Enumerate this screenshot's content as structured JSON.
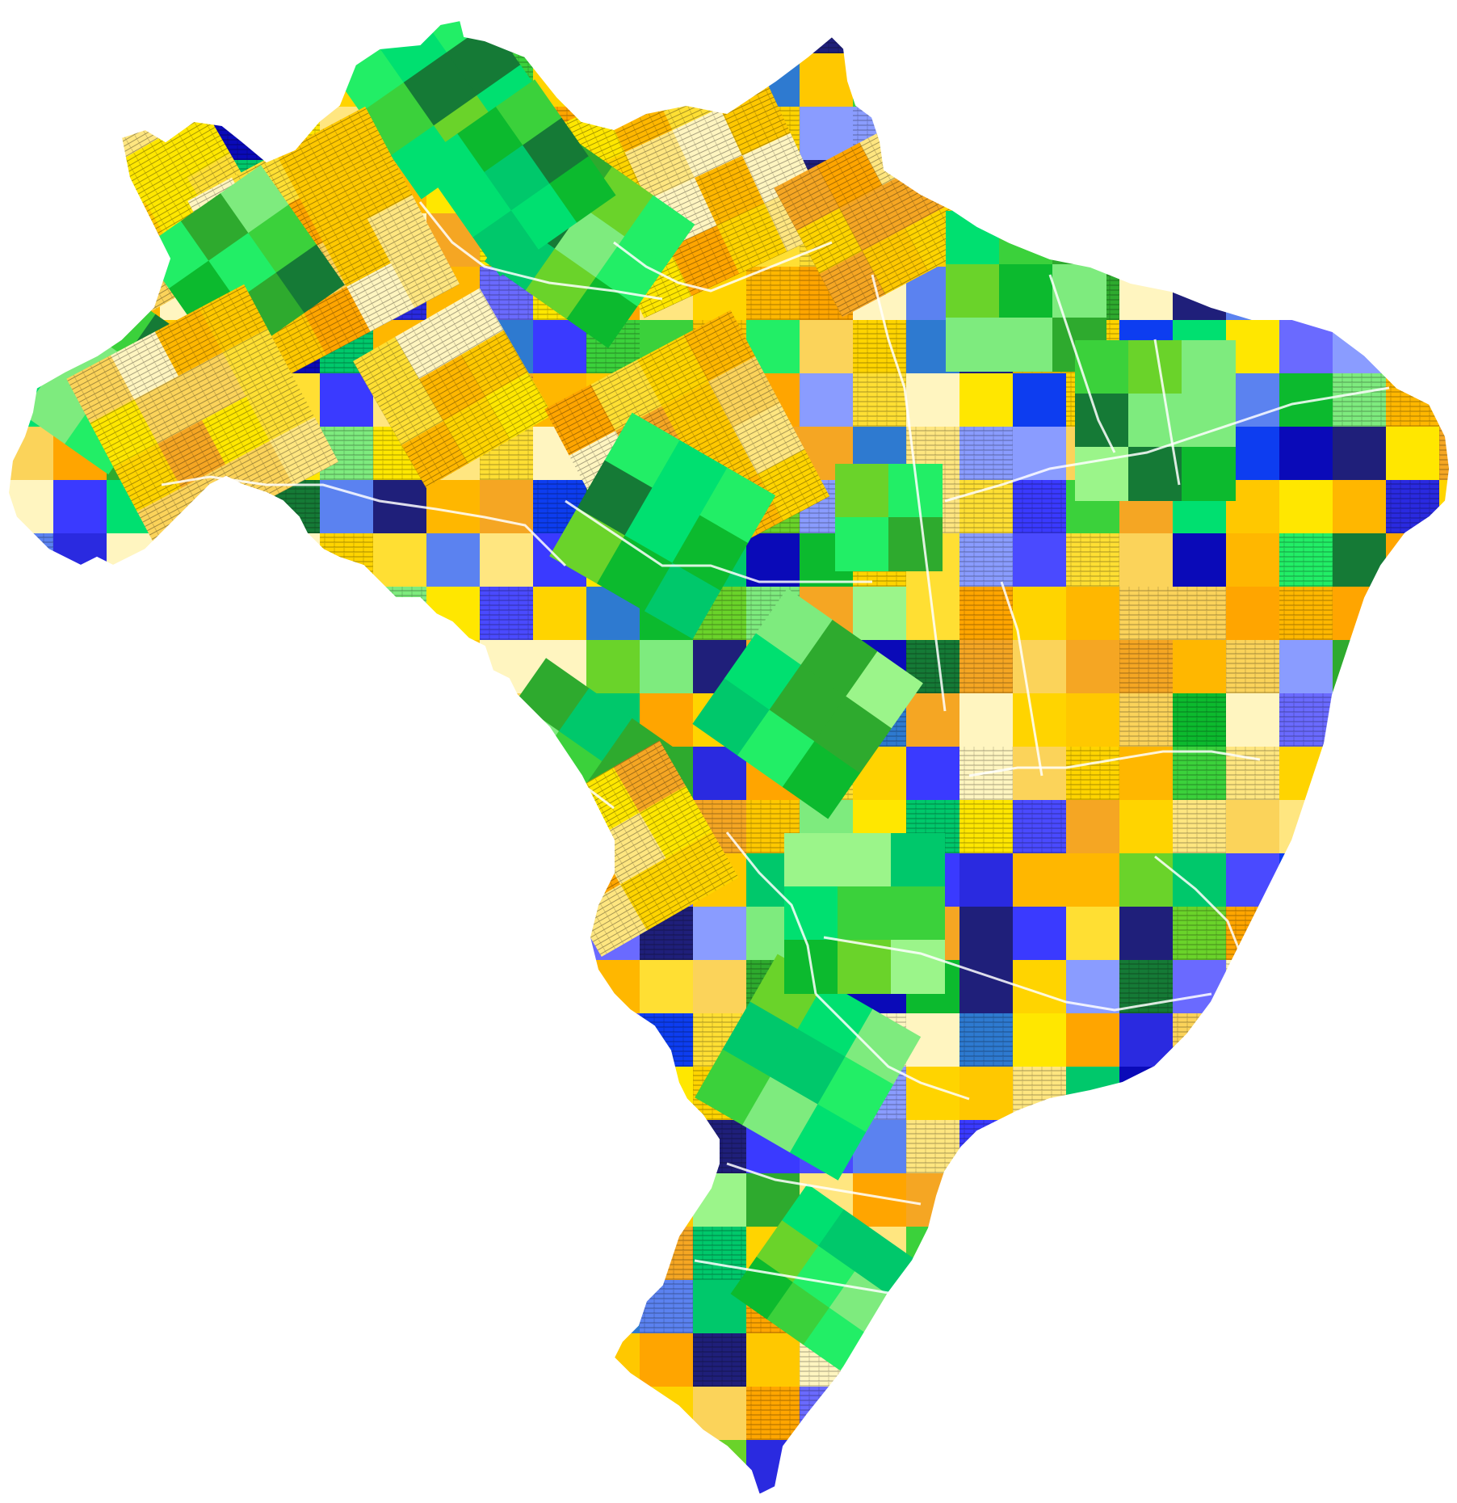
{
  "map": {
    "country": "Brazil",
    "style": "mosaic",
    "background": "#ffffff",
    "border_color": "#ffffff",
    "palettes": {
      "yellow": [
        "#ffd400",
        "#ffe700",
        "#ffc800",
        "#ffb700",
        "#ffa500",
        "#f5a623",
        "#ffe680",
        "#fff5c0",
        "#fbd35a",
        "#ffdf33"
      ],
      "green": [
        "#157a36",
        "#2eaa2e",
        "#3bd13b",
        "#00c86b",
        "#7eeb7e",
        "#9bf58a",
        "#22ee66",
        "#0cba2e",
        "#6ad32a",
        "#00e070"
      ],
      "blue": [
        "#0a0ab8",
        "#2a2ae0",
        "#4a4aff",
        "#6a6aff",
        "#8a9cff",
        "#1f1f7a",
        "#3a3aff",
        "#0d3df0",
        "#5b82f0",
        "#2e7ad0"
      ]
    },
    "symbols": {
      "hatching": "stripe-pattern",
      "tilted_blocks": "green-checker-tiles"
    }
  }
}
